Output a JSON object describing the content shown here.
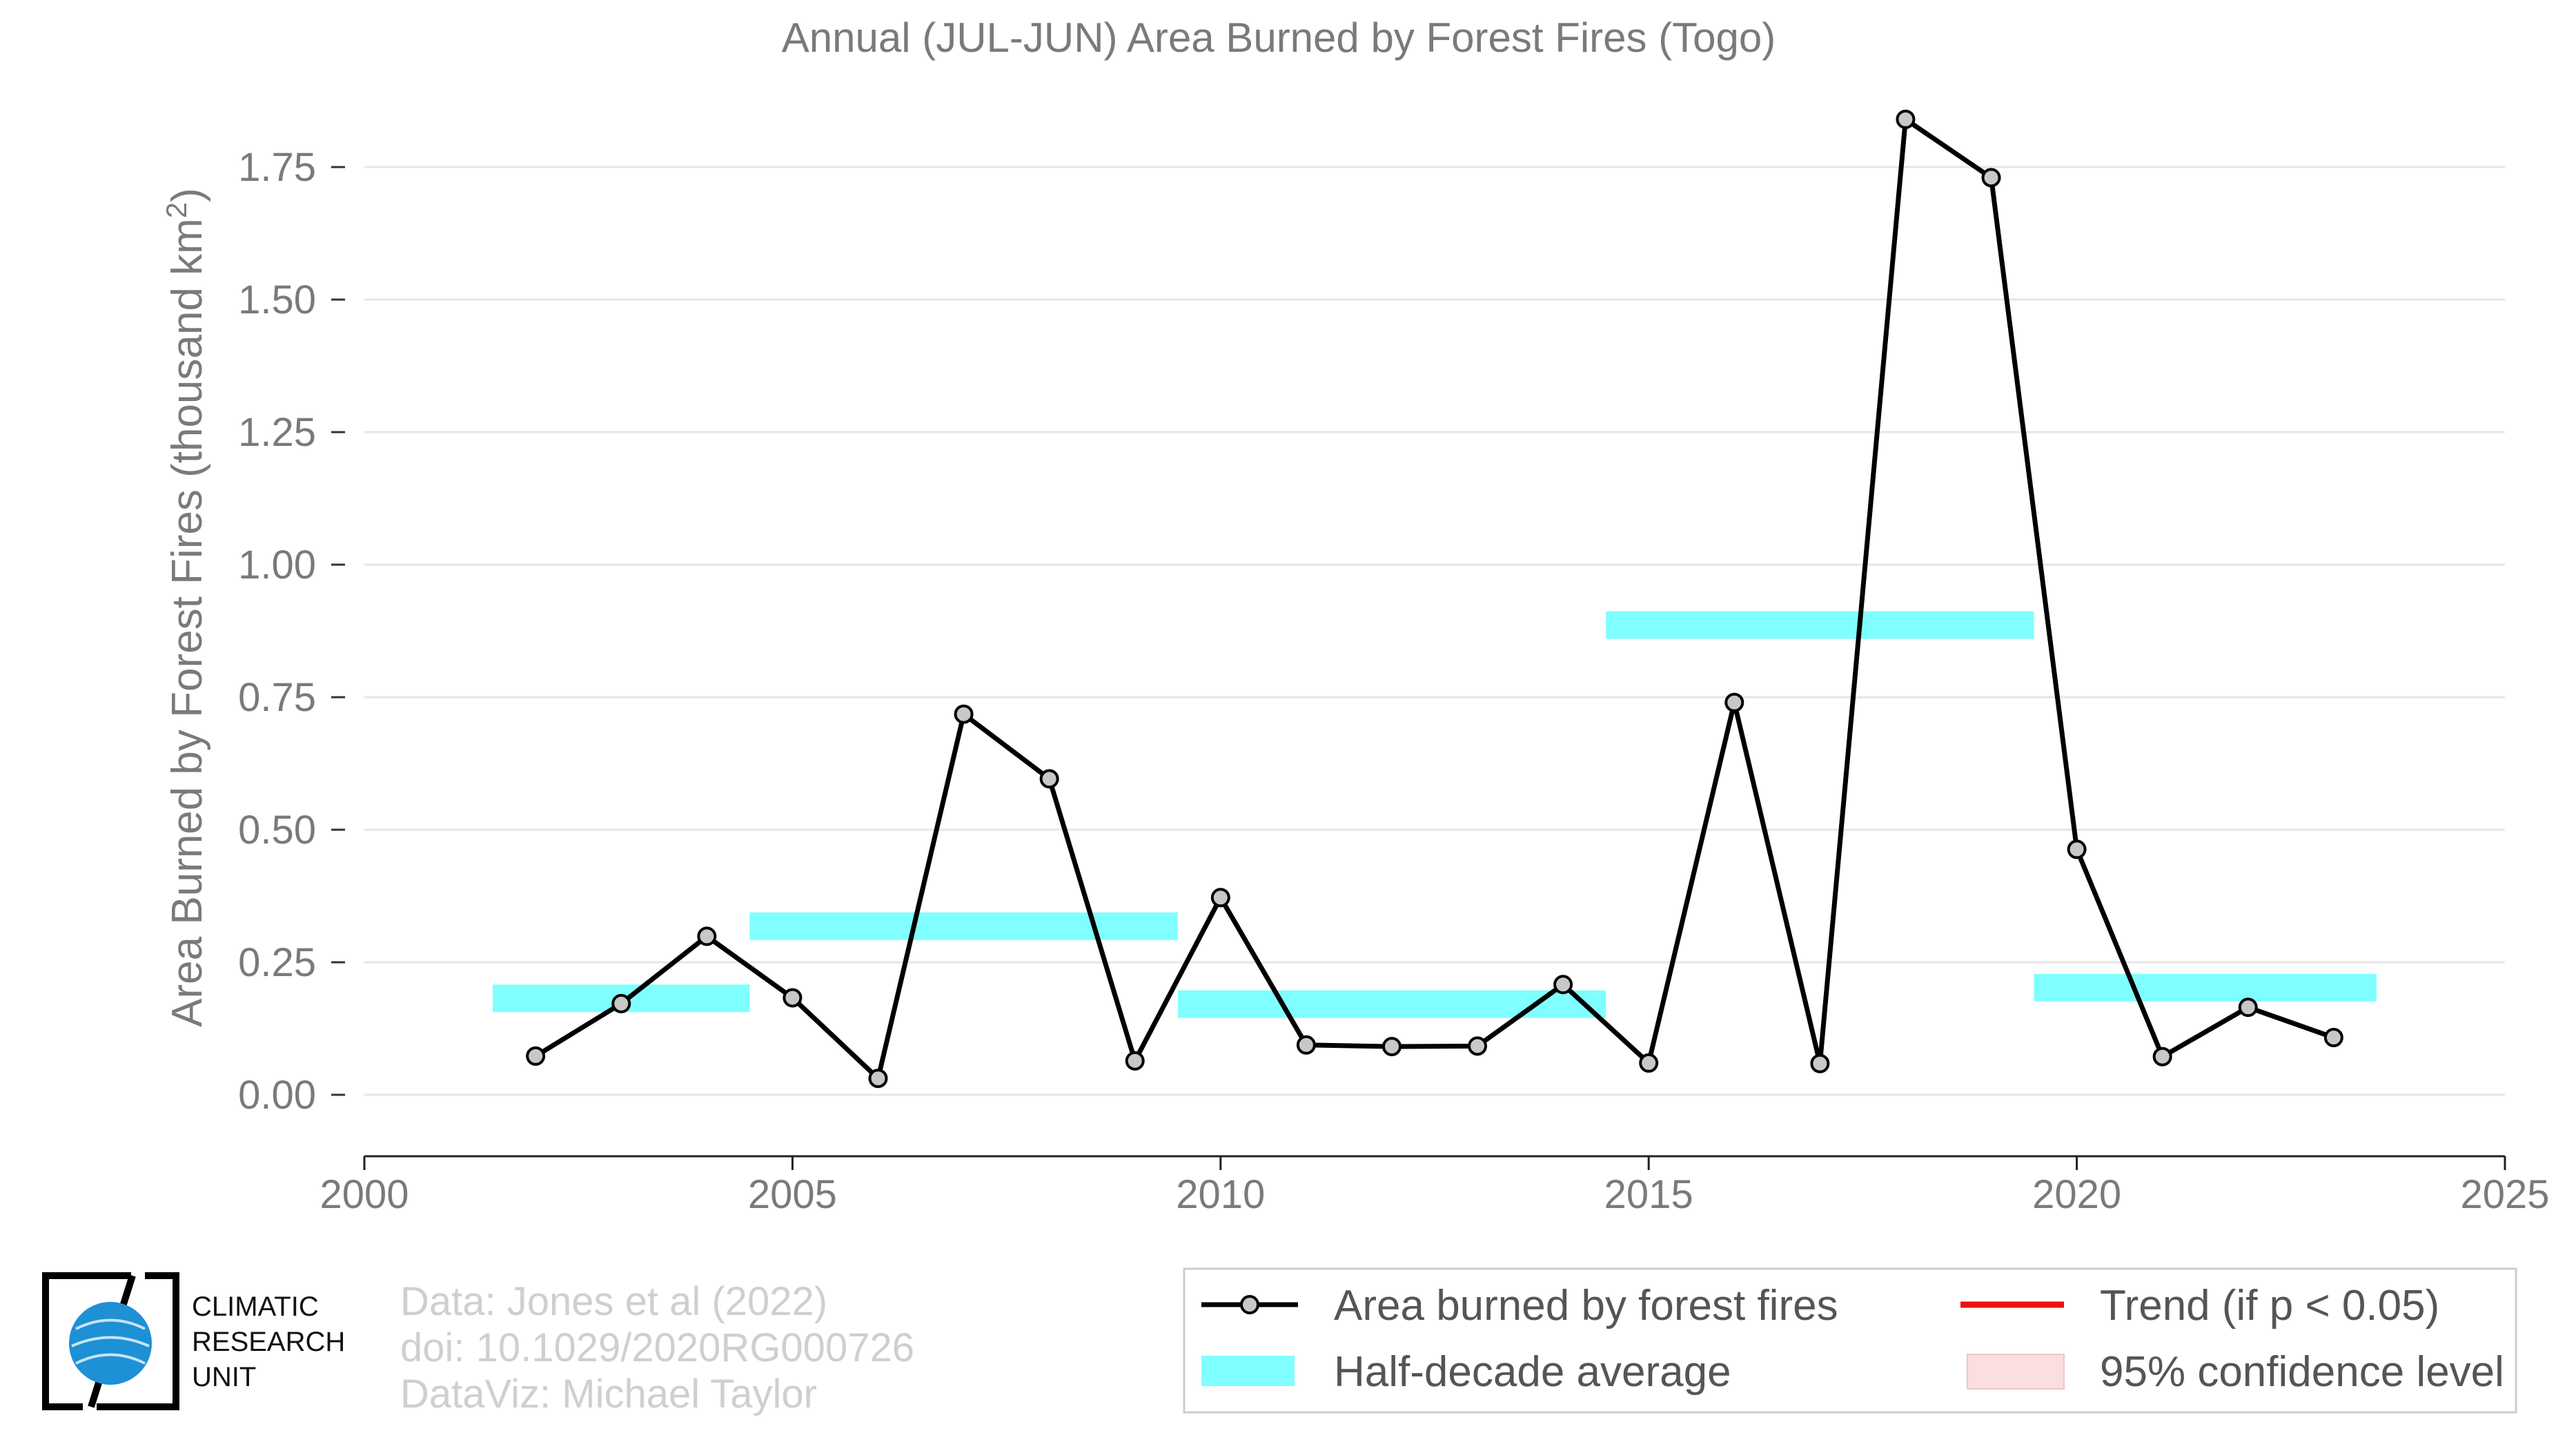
{
  "chart_data": {
    "type": "line",
    "title": "Annual (JUL-JUN) Area Burned by Forest Fires (Togo)",
    "ylabel": "Area Burned by Forest Fires (thousand km",
    "ylabel_superscript": "2",
    "ylabel_suffix": ")",
    "xlabel": "",
    "xlim": [
      2000,
      2025
    ],
    "ylim": [
      -0.115,
      1.9
    ],
    "x_ticks": [
      2000,
      2005,
      2010,
      2015,
      2020,
      2025
    ],
    "x_tick_labels": [
      "2000",
      "2005",
      "2010",
      "2015",
      "2020",
      "2025"
    ],
    "y_ticks": [
      0,
      0.25,
      0.5,
      0.75,
      1.0,
      1.25,
      1.5,
      1.75
    ],
    "y_tick_labels": [
      "0.00",
      "0.25",
      "0.50",
      "0.75",
      "1.00",
      "1.25",
      "1.50",
      "1.75"
    ],
    "grid": "horizontal",
    "series": [
      {
        "name": "Area burned by forest fires",
        "color": "#000000",
        "marker_fill": "#c8c8c8",
        "x": [
          2002,
          2003,
          2004,
          2005,
          2006,
          2007,
          2008,
          2009,
          2010,
          2011,
          2012,
          2013,
          2014,
          2015,
          2016,
          2017,
          2018,
          2019,
          2020,
          2021,
          2022,
          2023
        ],
        "y": [
          0.073,
          0.172,
          0.299,
          0.183,
          0.031,
          0.718,
          0.596,
          0.064,
          0.372,
          0.094,
          0.091,
          0.092,
          0.208,
          0.06,
          0.74,
          0.059,
          1.84,
          1.73,
          0.463,
          0.072,
          0.165,
          0.108
        ]
      }
    ],
    "half_decade_average": {
      "name": "Half-decade average",
      "color": "#7fffff",
      "segments": [
        {
          "x_start": 2001.5,
          "x_end": 2004.5,
          "value": 0.182
        },
        {
          "x_start": 2004.5,
          "x_end": 2009.5,
          "value": 0.318
        },
        {
          "x_start": 2009.5,
          "x_end": 2014.5,
          "value": 0.171
        },
        {
          "x_start": 2014.5,
          "x_end": 2019.5,
          "value": 0.886
        },
        {
          "x_start": 2019.5,
          "x_end": 2023.5,
          "value": 0.202
        }
      ]
    },
    "legend": {
      "placement": "bottom-right",
      "entries": [
        {
          "key": "line_marker",
          "label": "Area burned by forest fires"
        },
        {
          "key": "trend",
          "label": "Trend (if p < 0.05)",
          "color": "#ee1111"
        },
        {
          "key": "half_decade",
          "label": "Half-decade average",
          "color": "#7fffff"
        },
        {
          "key": "confidence",
          "label": "95% confidence level",
          "color": "#fbdede"
        }
      ]
    }
  },
  "credits": {
    "line1": "Data: Jones et al (2022)",
    "line2": "doi: 10.1029/2020RG000726",
    "line3": "DataViz: Michael Taylor"
  },
  "logo": {
    "line1": "CLIMATIC",
    "line2": "RESEARCH",
    "line3": "UNIT",
    "color": "#1e90d6"
  }
}
